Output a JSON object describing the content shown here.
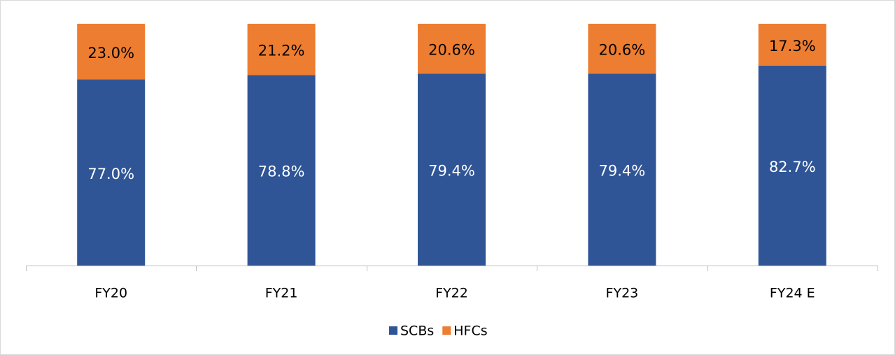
{
  "chart_data": {
    "type": "stacked-bar",
    "categories": [
      "FY20",
      "FY21",
      "FY22",
      "FY23",
      "FY24 E"
    ],
    "series": [
      {
        "name": "SCBs",
        "color": "#2f5597",
        "label_color": "#ffffff",
        "values": [
          77.0,
          78.8,
          79.4,
          79.4,
          82.7
        ],
        "value_labels": [
          "77.0%",
          "78.8%",
          "79.4%",
          "79.4%",
          "82.7%"
        ]
      },
      {
        "name": "HFCs",
        "color": "#ed7d31",
        "label_color": "#000000",
        "values": [
          23.0,
          21.2,
          20.6,
          20.6,
          17.3
        ],
        "value_labels": [
          "23.0%",
          "21.2%",
          "20.6%",
          "20.6%",
          "17.3%"
        ]
      }
    ],
    "ylim": [
      0,
      100
    ],
    "legend": "bottom"
  }
}
